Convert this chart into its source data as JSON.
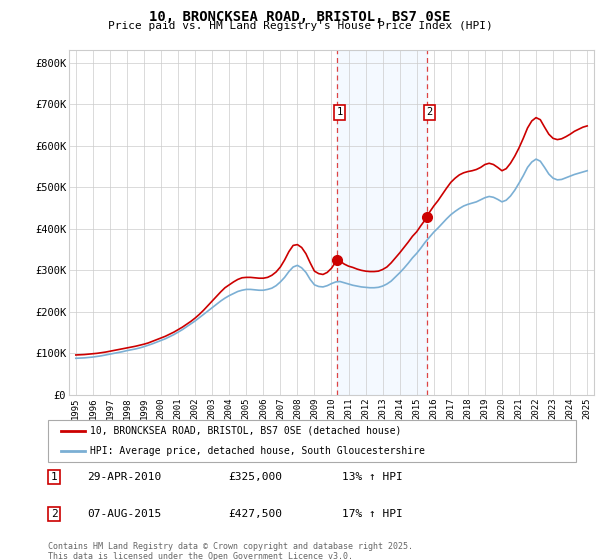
{
  "title": "10, BRONCKSEA ROAD, BRISTOL, BS7 0SE",
  "subtitle": "Price paid vs. HM Land Registry's House Price Index (HPI)",
  "xlim": [
    1994.6,
    2025.4
  ],
  "ylim": [
    0,
    830000
  ],
  "yticks": [
    0,
    100000,
    200000,
    300000,
    400000,
    500000,
    600000,
    700000,
    800000
  ],
  "ytick_labels": [
    "£0",
    "£100K",
    "£200K",
    "£300K",
    "£400K",
    "£500K",
    "£600K",
    "£700K",
    "£800K"
  ],
  "sale1_x": 2010.32,
  "sale1_y": 325000,
  "sale1_label": "1",
  "sale2_x": 2015.6,
  "sale2_y": 427500,
  "sale2_label": "2",
  "red_line_color": "#cc0000",
  "blue_line_color": "#7bafd4",
  "shade_color": "#ddeeff",
  "vline_color": "#dd4444",
  "background_color": "#ffffff",
  "grid_color": "#cccccc",
  "legend1_label": "10, BRONCKSEA ROAD, BRISTOL, BS7 0SE (detached house)",
  "legend2_label": "HPI: Average price, detached house, South Gloucestershire",
  "ann1_date": "29-APR-2010",
  "ann1_price": "£325,000",
  "ann1_hpi": "13% ↑ HPI",
  "ann2_date": "07-AUG-2015",
  "ann2_price": "£427,500",
  "ann2_hpi": "17% ↑ HPI",
  "footnote": "Contains HM Land Registry data © Crown copyright and database right 2025.\nThis data is licensed under the Open Government Licence v3.0.",
  "red_data_x": [
    1995,
    1995.25,
    1995.5,
    1995.75,
    1996,
    1996.25,
    1996.5,
    1996.75,
    1997,
    1997.25,
    1997.5,
    1997.75,
    1998,
    1998.25,
    1998.5,
    1998.75,
    1999,
    1999.25,
    1999.5,
    1999.75,
    2000,
    2000.25,
    2000.5,
    2000.75,
    2001,
    2001.25,
    2001.5,
    2001.75,
    2002,
    2002.25,
    2002.5,
    2002.75,
    2003,
    2003.25,
    2003.5,
    2003.75,
    2004,
    2004.25,
    2004.5,
    2004.75,
    2005,
    2005.25,
    2005.5,
    2005.75,
    2006,
    2006.25,
    2006.5,
    2006.75,
    2007,
    2007.25,
    2007.5,
    2007.75,
    2008,
    2008.25,
    2008.5,
    2008.75,
    2009,
    2009.25,
    2009.5,
    2009.75,
    2010,
    2010.32,
    2010.5,
    2010.75,
    2011,
    2011.25,
    2011.5,
    2011.75,
    2012,
    2012.25,
    2012.5,
    2012.75,
    2013,
    2013.25,
    2013.5,
    2013.75,
    2014,
    2014.25,
    2014.5,
    2014.75,
    2015,
    2015.25,
    2015.6,
    2015.75,
    2016,
    2016.25,
    2016.5,
    2016.75,
    2017,
    2017.25,
    2017.5,
    2017.75,
    2018,
    2018.25,
    2018.5,
    2018.75,
    2019,
    2019.25,
    2019.5,
    2019.75,
    2020,
    2020.25,
    2020.5,
    2020.75,
    2021,
    2021.25,
    2021.5,
    2021.75,
    2022,
    2022.25,
    2022.5,
    2022.75,
    2023,
    2023.25,
    2023.5,
    2023.75,
    2024,
    2024.25,
    2024.5,
    2024.75,
    2025
  ],
  "red_data_y": [
    96000,
    96500,
    97000,
    98000,
    99000,
    100000,
    101500,
    103000,
    105000,
    107000,
    109000,
    111000,
    113000,
    115000,
    117000,
    119500,
    122000,
    125000,
    129000,
    133000,
    137000,
    141000,
    146000,
    151000,
    157000,
    163000,
    170000,
    177000,
    185000,
    194000,
    204000,
    215000,
    226000,
    237000,
    248000,
    258000,
    265000,
    272000,
    278000,
    282000,
    283000,
    283000,
    282000,
    281000,
    281000,
    283000,
    288000,
    296000,
    308000,
    325000,
    345000,
    360000,
    362000,
    355000,
    340000,
    318000,
    298000,
    292000,
    290000,
    295000,
    305000,
    325000,
    322000,
    315000,
    310000,
    307000,
    303000,
    300000,
    298000,
    297000,
    297000,
    298000,
    302000,
    308000,
    318000,
    330000,
    342000,
    355000,
    368000,
    382000,
    393000,
    408000,
    427500,
    440000,
    455000,
    468000,
    483000,
    498000,
    512000,
    522000,
    530000,
    535000,
    538000,
    540000,
    543000,
    548000,
    555000,
    558000,
    555000,
    548000,
    540000,
    545000,
    558000,
    575000,
    595000,
    618000,
    643000,
    660000,
    668000,
    663000,
    645000,
    628000,
    618000,
    615000,
    617000,
    622000,
    628000,
    635000,
    640000,
    645000,
    648000
  ],
  "blue_data_x": [
    1995,
    1995.25,
    1995.5,
    1995.75,
    1996,
    1996.25,
    1996.5,
    1996.75,
    1997,
    1997.25,
    1997.5,
    1997.75,
    1998,
    1998.25,
    1998.5,
    1998.75,
    1999,
    1999.25,
    1999.5,
    1999.75,
    2000,
    2000.25,
    2000.5,
    2000.75,
    2001,
    2001.25,
    2001.5,
    2001.75,
    2002,
    2002.25,
    2002.5,
    2002.75,
    2003,
    2003.25,
    2003.5,
    2003.75,
    2004,
    2004.25,
    2004.5,
    2004.75,
    2005,
    2005.25,
    2005.5,
    2005.75,
    2006,
    2006.25,
    2006.5,
    2006.75,
    2007,
    2007.25,
    2007.5,
    2007.75,
    2008,
    2008.25,
    2008.5,
    2008.75,
    2009,
    2009.25,
    2009.5,
    2009.75,
    2010,
    2010.25,
    2010.5,
    2010.75,
    2011,
    2011.25,
    2011.5,
    2011.75,
    2012,
    2012.25,
    2012.5,
    2012.75,
    2013,
    2013.25,
    2013.5,
    2013.75,
    2014,
    2014.25,
    2014.5,
    2014.75,
    2015,
    2015.25,
    2015.5,
    2015.75,
    2016,
    2016.25,
    2016.5,
    2016.75,
    2017,
    2017.25,
    2017.5,
    2017.75,
    2018,
    2018.25,
    2018.5,
    2018.75,
    2019,
    2019.25,
    2019.5,
    2019.75,
    2020,
    2020.25,
    2020.5,
    2020.75,
    2021,
    2021.25,
    2021.5,
    2021.75,
    2022,
    2022.25,
    2022.5,
    2022.75,
    2023,
    2023.25,
    2023.5,
    2023.75,
    2024,
    2024.25,
    2024.5,
    2024.75,
    2025
  ],
  "blue_data_y": [
    88000,
    88500,
    89000,
    90000,
    91000,
    92500,
    94000,
    96000,
    98000,
    100000,
    102000,
    104000,
    106500,
    108500,
    110500,
    113000,
    116000,
    119500,
    123000,
    127000,
    131000,
    135000,
    140000,
    145000,
    151000,
    157000,
    164000,
    171000,
    178000,
    186000,
    194000,
    202000,
    210000,
    218000,
    226000,
    233000,
    239000,
    244000,
    249000,
    252000,
    254000,
    254000,
    253000,
    252000,
    252000,
    254000,
    257000,
    263000,
    272000,
    283000,
    297000,
    308000,
    312000,
    306000,
    295000,
    278000,
    265000,
    261000,
    260000,
    263000,
    268000,
    272000,
    273000,
    270000,
    267000,
    264000,
    262000,
    260000,
    259000,
    258000,
    258000,
    259000,
    262000,
    267000,
    274000,
    284000,
    294000,
    305000,
    317000,
    330000,
    341000,
    354000,
    368000,
    380000,
    392000,
    402000,
    413000,
    424000,
    434000,
    442000,
    449000,
    455000,
    459000,
    462000,
    465000,
    470000,
    475000,
    478000,
    476000,
    471000,
    465000,
    469000,
    479000,
    493000,
    510000,
    528000,
    548000,
    561000,
    568000,
    563000,
    548000,
    532000,
    522000,
    518000,
    519000,
    523000,
    527000,
    531000,
    534000,
    537000,
    540000
  ]
}
